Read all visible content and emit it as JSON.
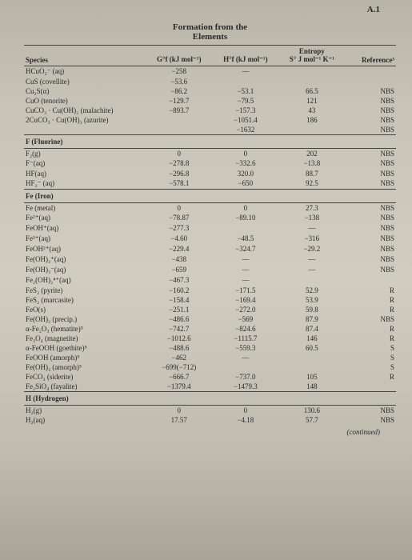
{
  "pageNum": "A.1",
  "title1": "Formation from the",
  "title2": "Elements",
  "headers": {
    "species": "Species",
    "g": "G°f (kJ mol⁻¹)",
    "h": "H°f (kJ mol⁻¹)",
    "entropy": "Entropy",
    "s": "S° J mol⁻¹ K⁻¹",
    "ref": "Reference³"
  },
  "rows": [
    {
      "sp": "HCuO₂⁻ (aq)",
      "g": "−258",
      "h": "—",
      "s": "",
      "r": ""
    },
    {
      "sp": "CuS (covellite)",
      "g": "−53.6",
      "h": "",
      "s": "",
      "r": ""
    },
    {
      "sp": "Cu₂S(α)",
      "g": "−86.2",
      "h": "−53.1",
      "s": "66.5",
      "r": "NBS"
    },
    {
      "sp": "CuO (tenorite)",
      "g": "−129.7",
      "h": "−79.5",
      "s": "121",
      "r": "NBS"
    },
    {
      "sp": "CuCO₃ · Cu(OH)₂ (malachite)",
      "g": "−893.7",
      "h": "−157.3",
      "s": "43",
      "r": "NBS"
    },
    {
      "sp": "2CuCO₃ · Cu(OH)₂ (azurite)",
      "g": "",
      "h": "−1051.4",
      "s": "186",
      "r": "NBS"
    },
    {
      "sp": "",
      "g": "",
      "h": "−1632",
      "s": "",
      "r": "NBS"
    }
  ],
  "fluorine": {
    "label": "F (Fluorine)"
  },
  "fluorineRows": [
    {
      "sp": "F₂(g)",
      "g": "0",
      "h": "0",
      "s": "202",
      "r": "NBS"
    },
    {
      "sp": "F⁻(aq)",
      "g": "−278.8",
      "h": "−332.6",
      "s": "−13.8",
      "r": "NBS"
    },
    {
      "sp": "HF(aq)",
      "g": "−296.8",
      "h": "320.0",
      "s": "88.7",
      "r": "NBS"
    },
    {
      "sp": "HF₂⁻ (aq)",
      "g": "−578.1",
      "h": "−650",
      "s": "92.5",
      "r": "NBS"
    }
  ],
  "iron": {
    "label": "Fe (Iron)"
  },
  "ironRows": [
    {
      "sp": "Fe (metal)",
      "g": "0",
      "h": "0",
      "s": "27.3",
      "r": "NBS"
    },
    {
      "sp": "Fe²⁺(aq)",
      "g": "−78.87",
      "h": "−89.10",
      "s": "−138",
      "r": "NBS"
    },
    {
      "sp": "FeOH⁺(aq)",
      "g": "−277.3",
      "h": "",
      "s": "—",
      "r": "NBS"
    },
    {
      "sp": "Fe³⁺(aq)",
      "g": "−4.60",
      "h": "−48.5",
      "s": "−316",
      "r": "NBS"
    },
    {
      "sp": "FeOH²⁺(aq)",
      "g": "−229.4",
      "h": "−324.7",
      "s": "−29.2",
      "r": "NBS"
    },
    {
      "sp": "Fe(OH)₂⁺(aq)",
      "g": "−438",
      "h": "—",
      "s": "—",
      "r": "NBS"
    },
    {
      "sp": "Fe(OH)₃⁻(aq)",
      "g": "−659",
      "h": "—",
      "s": "—",
      "r": "NBS"
    },
    {
      "sp": "Fe₂(OH)₂⁴⁺(aq)",
      "g": "−467.3",
      "h": "—",
      "s": "",
      "r": ""
    },
    {
      "sp": "FeS₂ (pyrite)",
      "g": "−160.2",
      "h": "−171.5",
      "s": "52.9",
      "r": "R"
    },
    {
      "sp": "FeS₂ (marcasite)",
      "g": "−158.4",
      "h": "−169.4",
      "s": "53.9",
      "r": "R"
    },
    {
      "sp": "FeO(s)",
      "g": "−251.1",
      "h": "−272.0",
      "s": "59.8",
      "r": "R"
    },
    {
      "sp": "Fe(OH)₂ (precip.)",
      "g": "−486.6",
      "h": "−569",
      "s": "87.9",
      "r": "NBS"
    },
    {
      "sp": "α-Fe₂O₃ (hematite)⁵",
      "g": "−742.7",
      "h": "−824.6",
      "s": "87.4",
      "r": "R"
    },
    {
      "sp": "Fe₃O₄ (magnetite)",
      "g": "−1012.6",
      "h": "−1115.7",
      "s": "146",
      "r": "R"
    },
    {
      "sp": "α-FeOOH (goethite)⁵",
      "g": "−488.6",
      "h": "−559.3",
      "s": "60.5",
      "r": "S"
    },
    {
      "sp": "FeOOH (amorph)⁵",
      "g": "−462",
      "h": "—",
      "s": "",
      "r": "S"
    },
    {
      "sp": "Fe(OH)₃ (amorph)⁵",
      "g": "−699(−712)",
      "h": "",
      "s": "",
      "r": "S"
    },
    {
      "sp": "FeCO₃ (siderite)",
      "g": "−666.7",
      "h": "−737.0",
      "s": "105",
      "r": "R"
    },
    {
      "sp": "Fe₂SiO₄ (fayalite)",
      "g": "−1379.4",
      "h": "−1479.3",
      "s": "148",
      "r": ""
    }
  ],
  "hydrogen": {
    "label": "H (Hydrogen)"
  },
  "hydrogenRows": [
    {
      "sp": "H₂(g)",
      "g": "0",
      "h": "0",
      "s": "130.6",
      "r": "NBS"
    },
    {
      "sp": "H₂(aq)",
      "g": "17.57",
      "h": "−4.18",
      "s": "57.7",
      "r": "NBS"
    }
  ],
  "continued": "(continued)"
}
